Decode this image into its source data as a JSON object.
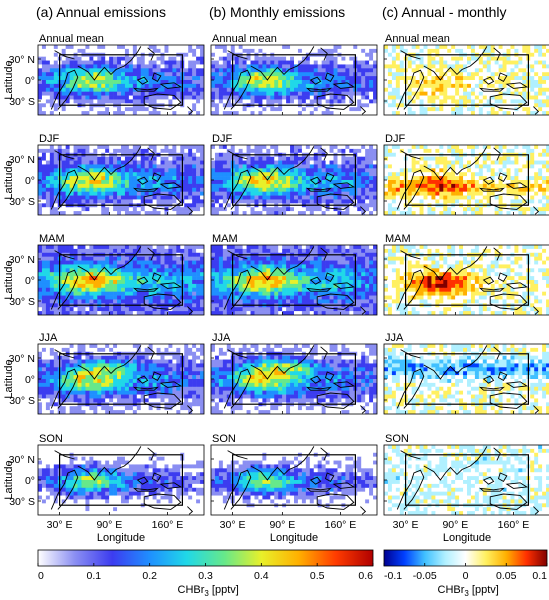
{
  "figure": {
    "columns": [
      {
        "title": "(a) Annual emissions",
        "mode": "sequential"
      },
      {
        "title": "(b) Monthly emissions",
        "mode": "sequential"
      },
      {
        "title": "(c) Annual - monthly",
        "mode": "diverging"
      }
    ],
    "rows": [
      "Annual mean",
      "DJF",
      "MAM",
      "JJA",
      "SON"
    ],
    "y_axis": {
      "label": "Latitude",
      "ticks": [
        "30° N",
        "0°",
        "30° S"
      ]
    },
    "x_axis": {
      "label": "Longitude",
      "ticks": [
        "30° E",
        "90° E",
        "160° E"
      ]
    },
    "colorbars": [
      {
        "label": "CHBr3 [pptv]",
        "label_main": "CHBr",
        "label_sub": "3",
        "label_unit": " [pptv]",
        "range": [
          0,
          0.6
        ],
        "ticks": [
          "0",
          "0.1",
          "0.2",
          "0.3",
          "0.4",
          "0.5",
          "0.6"
        ]
      },
      {
        "label": "CHBr3 [pptv]",
        "label_main": "CHBr",
        "label_sub": "3",
        "label_unit": " [pptv]",
        "range": [
          -0.1,
          0.1
        ],
        "ticks": [
          "-0.1",
          "-0.05",
          "0",
          "0.05",
          "0.1"
        ]
      }
    ]
  },
  "colors": {
    "sequential": [
      "#ffffff",
      "#8a8ef2",
      "#3c3cf0",
      "#1f8fff",
      "#20d8e8",
      "#66e88a",
      "#e8f02a",
      "#ffb000",
      "#ff3c00",
      "#b00000"
    ],
    "diverging": [
      "#000090",
      "#0040ff",
      "#40c0ff",
      "#b0f0ff",
      "#ffffff",
      "#fff060",
      "#ffb000",
      "#ff3000",
      "#800000"
    ]
  }
}
